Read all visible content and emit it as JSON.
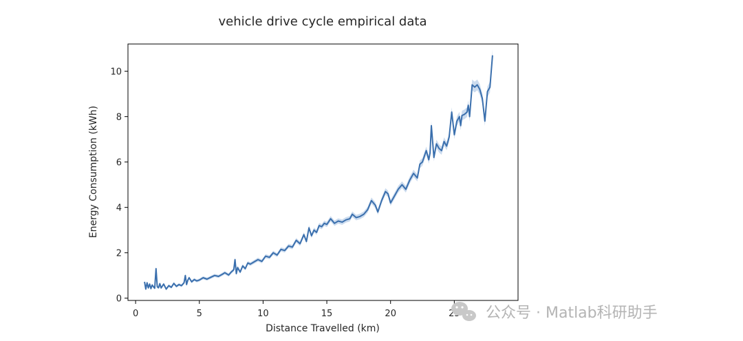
{
  "chart_data": {
    "type": "line",
    "title": "vehicle drive cycle empirical data",
    "xlabel": "Distance Travelled (km)",
    "ylabel": "Energy Consumption (kWh)",
    "xlim": [
      -0.6,
      30.0
    ],
    "ylim": [
      -0.1,
      11.2
    ],
    "xticks": [
      0,
      5,
      10,
      15,
      20,
      25
    ],
    "yticks": [
      0,
      2,
      4,
      6,
      8,
      10
    ],
    "grid": false,
    "legend": "none",
    "series": [
      {
        "name": "Energy Consumption (kWh)",
        "color": "#3a6fad",
        "band_color": "#a9c3e3",
        "x": [
          0.7,
          0.8,
          0.9,
          1.0,
          1.1,
          1.2,
          1.3,
          1.4,
          1.5,
          1.6,
          1.7,
          1.8,
          1.9,
          2.0,
          2.2,
          2.4,
          2.6,
          2.8,
          3.0,
          3.2,
          3.4,
          3.6,
          3.8,
          3.9,
          4.0,
          4.1,
          4.2,
          4.4,
          4.6,
          4.8,
          5.0,
          5.3,
          5.6,
          5.9,
          6.2,
          6.5,
          6.8,
          7.0,
          7.3,
          7.5,
          7.7,
          7.8,
          7.9,
          8.0,
          8.2,
          8.4,
          8.6,
          8.8,
          9.0,
          9.3,
          9.6,
          9.9,
          10.2,
          10.5,
          10.8,
          11.1,
          11.4,
          11.7,
          12.0,
          12.3,
          12.6,
          12.9,
          13.2,
          13.4,
          13.6,
          13.8,
          14.0,
          14.2,
          14.4,
          14.6,
          14.8,
          15.0,
          15.3,
          15.6,
          15.9,
          16.2,
          16.5,
          16.8,
          17.0,
          17.3,
          17.6,
          17.9,
          18.2,
          18.5,
          18.8,
          19.0,
          19.3,
          19.6,
          19.8,
          20.0,
          20.3,
          20.6,
          20.9,
          21.2,
          21.5,
          21.8,
          22.1,
          22.3,
          22.5,
          22.8,
          23.0,
          23.1,
          23.2,
          23.4,
          23.6,
          23.8,
          24.0,
          24.2,
          24.4,
          24.6,
          24.8,
          25.0,
          25.2,
          25.4,
          25.5,
          25.6,
          25.8,
          26.0,
          26.1,
          26.2,
          26.4,
          26.6,
          26.8,
          27.0,
          27.2,
          27.4,
          27.6,
          27.8,
          28.0
        ],
        "y": [
          0.72,
          0.4,
          0.68,
          0.45,
          0.62,
          0.42,
          0.58,
          0.5,
          0.44,
          1.3,
          0.5,
          0.46,
          0.64,
          0.45,
          0.62,
          0.4,
          0.55,
          0.48,
          0.65,
          0.52,
          0.6,
          0.55,
          0.68,
          1.0,
          0.6,
          0.8,
          0.9,
          0.72,
          0.82,
          0.76,
          0.8,
          0.9,
          0.84,
          0.92,
          1.0,
          0.96,
          1.05,
          1.12,
          1.02,
          1.15,
          1.25,
          1.7,
          1.08,
          1.35,
          1.15,
          1.42,
          1.3,
          1.55,
          1.5,
          1.6,
          1.7,
          1.62,
          1.85,
          1.8,
          2.0,
          1.9,
          2.15,
          2.1,
          2.3,
          2.25,
          2.55,
          2.4,
          2.8,
          2.5,
          3.1,
          2.75,
          3.0,
          2.9,
          3.2,
          3.15,
          3.3,
          3.25,
          3.5,
          3.3,
          3.4,
          3.35,
          3.45,
          3.5,
          3.7,
          3.55,
          3.6,
          3.7,
          3.9,
          4.3,
          4.1,
          3.8,
          4.3,
          4.7,
          4.6,
          4.2,
          4.5,
          4.8,
          5.0,
          4.8,
          5.2,
          5.5,
          5.3,
          5.9,
          6.0,
          6.5,
          6.1,
          6.4,
          7.6,
          6.2,
          6.8,
          6.6,
          6.5,
          6.9,
          6.7,
          7.1,
          8.2,
          7.2,
          7.8,
          8.0,
          7.6,
          8.05,
          8.1,
          8.2,
          8.5,
          8.0,
          9.4,
          9.3,
          9.4,
          9.2,
          8.8,
          7.8,
          9.1,
          9.3,
          10.7
        ]
      }
    ]
  },
  "watermark": {
    "text": "公众号 · Matlab科研助手",
    "icon": "wechat-icon"
  }
}
